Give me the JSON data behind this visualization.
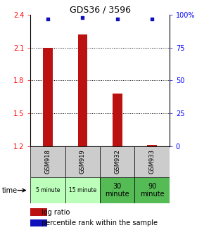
{
  "title": "GDS36 / 3596",
  "samples": [
    "GSM918",
    "GSM919",
    "GSM932",
    "GSM933"
  ],
  "time_labels": [
    "5 minute",
    "15 minute",
    "30\nminute",
    "90\nminute"
  ],
  "time_bg_colors": [
    "#bbffbb",
    "#bbffbb",
    "#55bb55",
    "#55bb55"
  ],
  "log_ratios": [
    2.1,
    2.22,
    1.68,
    1.21
  ],
  "percentile_ranks": [
    97,
    98,
    97,
    97
  ],
  "ylim_left": [
    1.2,
    2.4
  ],
  "ylim_right": [
    0,
    100
  ],
  "yticks_left": [
    1.2,
    1.5,
    1.8,
    2.1,
    2.4
  ],
  "yticks_right": [
    0,
    25,
    50,
    75,
    100
  ],
  "bar_color": "#bb1111",
  "dot_color": "#1111bb",
  "sample_bg_color": "#cccccc",
  "bg_color": "#ffffff",
  "legend_bar_label": "log ratio",
  "legend_dot_label": "percentile rank within the sample"
}
